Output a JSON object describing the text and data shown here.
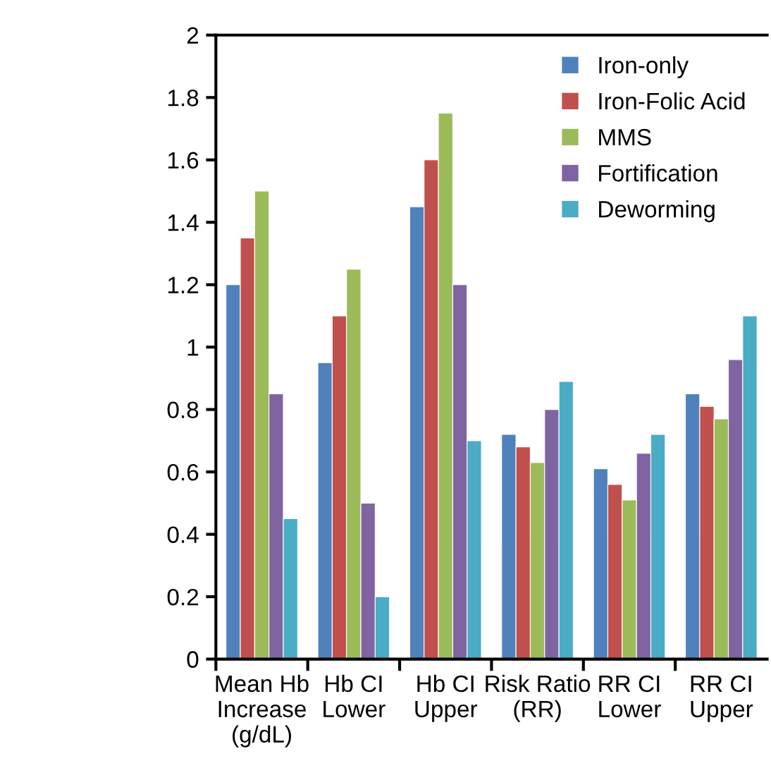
{
  "chart_data": {
    "type": "bar",
    "categories": [
      "Mean Hb\nIncrease\n(g/dL)",
      "Hb CI\nLower",
      "Hb CI\nUpper",
      "Risk Ratio\n(RR)",
      "RR CI\nLower",
      "RR CI\nUpper"
    ],
    "series": [
      {
        "name": "Iron-only",
        "color": "#4f81bd",
        "values": [
          1.2,
          0.95,
          1.45,
          0.72,
          0.61,
          0.85
        ]
      },
      {
        "name": "Iron-Folic Acid",
        "color": "#c0504d",
        "values": [
          1.35,
          1.1,
          1.6,
          0.68,
          0.56,
          0.81
        ]
      },
      {
        "name": "MMS",
        "color": "#9bbb59",
        "values": [
          1.5,
          1.25,
          1.75,
          0.63,
          0.51,
          0.77
        ]
      },
      {
        "name": "Fortification",
        "color": "#8064a2",
        "values": [
          0.85,
          0.5,
          1.2,
          0.8,
          0.66,
          0.96
        ]
      },
      {
        "name": "Deworming",
        "color": "#4bacc6",
        "values": [
          0.45,
          0.2,
          0.7,
          0.89,
          0.72,
          1.1
        ]
      }
    ],
    "ylim": [
      0,
      2
    ],
    "yticks": [
      0,
      {
        "value": 0.2,
        "label": "0.2"
      },
      {
        "value": 0.4,
        "label": "0.4"
      },
      {
        "value": 0.6,
        "label": "0.6"
      },
      {
        "value": 0.8,
        "label": "0.8"
      },
      1,
      {
        "value": 1.2,
        "label": "1.2"
      },
      {
        "value": 1.4,
        "label": "1.4"
      },
      {
        "value": 1.6,
        "label": "1.6"
      },
      {
        "value": 1.8,
        "label": "1.8"
      },
      2
    ],
    "grid": false,
    "legend": "top right"
  }
}
